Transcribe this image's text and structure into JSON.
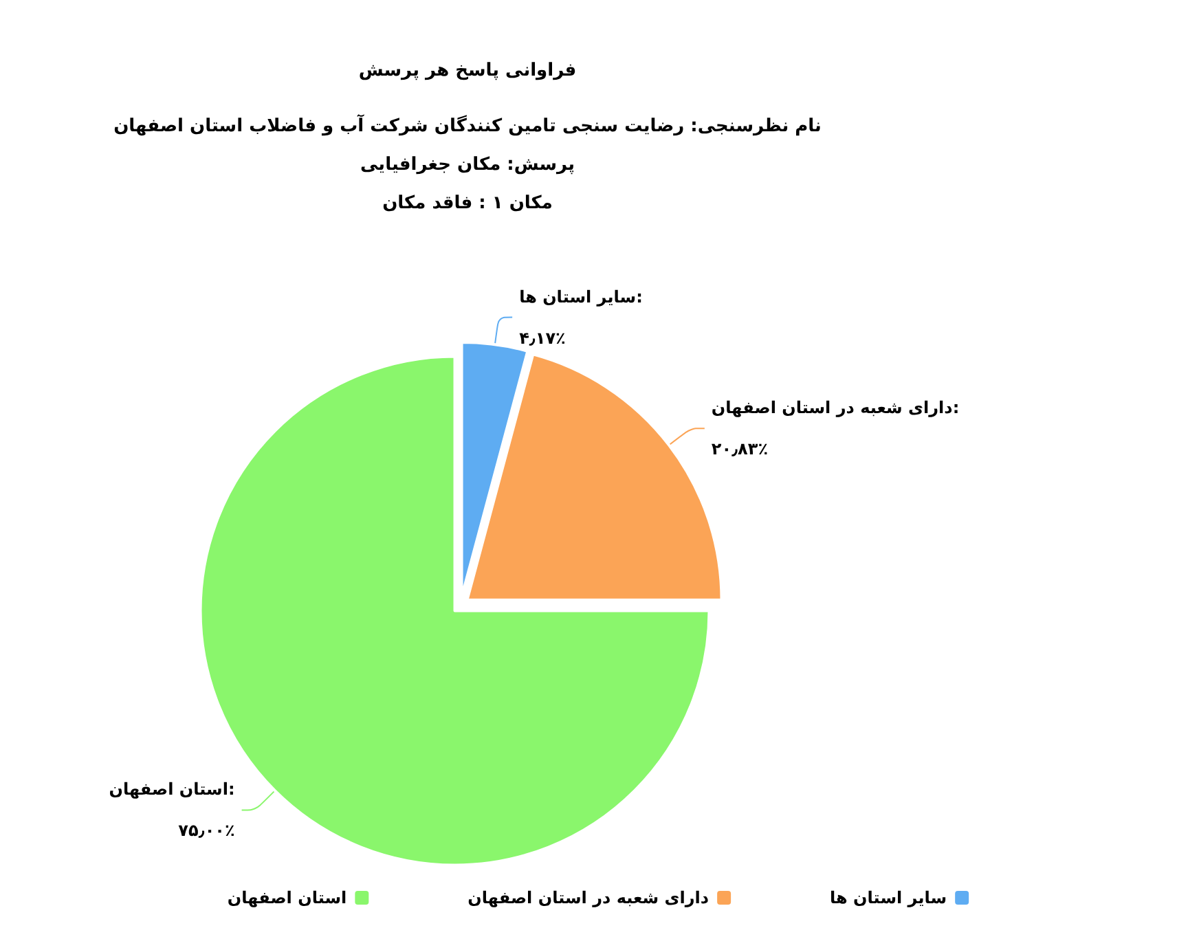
{
  "chart_data": {
    "type": "pie",
    "title": "فراوانی پاسخ هر پرسش",
    "subtitle": "نام نظرسنجی: رضایت سنجی تامین کنندگان شرکت آب و فاضلاب استان اصفهان\nپرسش: مکان جغرافیایی\nمکان ۱ : فاقد مکان",
    "categories": [
      "سایر استان ها",
      "دارای شعبه در استان اصفهان",
      "استان اصفهان"
    ],
    "values": [
      4.17,
      20.83,
      75.0
    ],
    "colors": [
      "#5eacf2",
      "#fba456",
      "#8af66c"
    ],
    "value_labels": [
      "سایر استان ها:\n۴٫۱۷٪",
      "دارای شعبه در استان اصفهان:\n۲۰٫۸۳٪",
      "استان اصفهان:\n۷۵٫۰۰٪"
    ],
    "legend": "bottom"
  }
}
